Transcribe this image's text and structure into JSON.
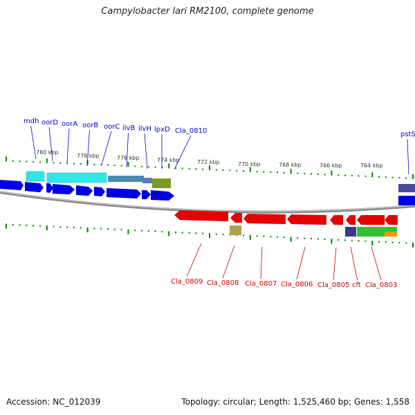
{
  "header": {
    "title": "Campylobacter lari RM2100, complete genome"
  },
  "footer": {
    "accession": "Accession: NC_012039",
    "summary": "Topology: circular; Length: 1,525,460 bp; Genes: 1,558"
  },
  "colors": {
    "forward_gene": "#0000e6",
    "reverse_gene": "#e60000",
    "backbone": "#8a8a8a",
    "tick": "#008000",
    "label_top": "#0000cc",
    "label_bottom": "#cc0000"
  },
  "scale": {
    "unit": "kbp",
    "ticks": [
      "780 kbp",
      "778 kbp",
      "776 kbp",
      "774 kbp",
      "772 kbp",
      "770 kbp",
      "768 kbp",
      "766 kbp",
      "764 kbp"
    ]
  },
  "genes_top": [
    "mdh",
    "oorD",
    "oorA",
    "oorB",
    "oorC",
    "ilvB",
    "ilvH",
    "lpxD",
    "Cla_0810",
    "pstS"
  ],
  "genes_bottom": [
    "Cla_0809",
    "Cla_0808",
    "Cla_0807",
    "Cla_0806",
    "Cla_0805",
    "cft",
    "Cla_0803"
  ]
}
